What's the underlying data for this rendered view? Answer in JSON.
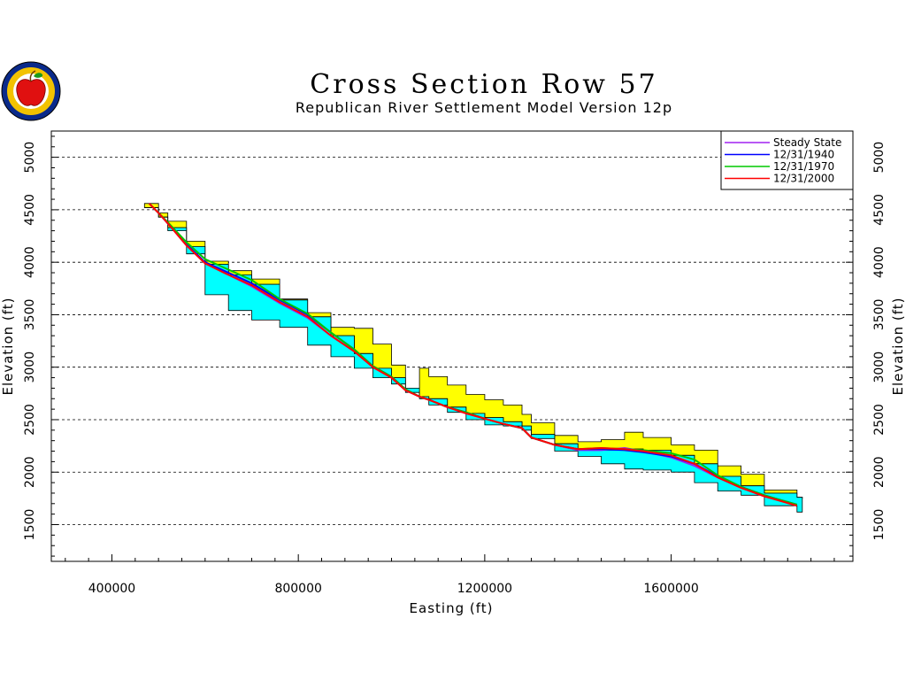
{
  "chart_data": {
    "type": "area",
    "title": "Cross Section Row 57",
    "subtitle": "Republican River Settlement Model Version 12p",
    "xlabel": "Easting (ft)",
    "ylabel": "Elevation (ft)",
    "xlim": [
      270000,
      1990000
    ],
    "ylim": [
      1150000,
      5250000
    ],
    "ylim_note": "",
    "ylim_ft": [
      1150,
      5250
    ],
    "x_ticks": [
      "400000",
      "800000",
      "1200000",
      "1600000"
    ],
    "x_tick_values": [
      400000,
      800000,
      1200000,
      1600000
    ],
    "y_ticks": [
      "1500",
      "2000",
      "2500",
      "3000",
      "3500",
      "4000",
      "4500",
      "5000"
    ],
    "y_tick_values": [
      1500,
      2000,
      2500,
      3000,
      3500,
      4000,
      4500,
      5000
    ],
    "grid": "dashed horizontal",
    "legend_position": "top-right",
    "legend": [
      {
        "name": "Steady State",
        "color": "#a020f0"
      },
      {
        "name": "12/31/1940",
        "color": "#0000ff"
      },
      {
        "name": "12/31/1970",
        "color": "#00c800"
      },
      {
        "name": "12/31/2000",
        "color": "#ff0000"
      }
    ],
    "layers": {
      "top_surface": {
        "color": "#ffff00",
        "x": [
          470000,
          500000,
          520000,
          560000,
          600000,
          650000,
          700000,
          760000,
          820000,
          870000,
          920000,
          960000,
          1000000,
          1030000,
          1060000,
          1080000,
          1120000,
          1160000,
          1200000,
          1240000,
          1280000,
          1300000,
          1350000,
          1400000,
          1450000,
          1500000,
          1540000,
          1600000,
          1650000,
          1700000,
          1750000,
          1800000,
          1870000
        ],
        "y": [
          4560,
          4470,
          4390,
          4200,
          4010,
          3920,
          3840,
          3650,
          3520,
          3380,
          3370,
          3220,
          3020,
          2800,
          2990,
          2910,
          2830,
          2740,
          2690,
          2640,
          2550,
          2470,
          2350,
          2290,
          2310,
          2380,
          2330,
          2260,
          2210,
          2060,
          1980,
          1830,
          1750
        ]
      },
      "aquifer_top": {
        "color": "#00ffff",
        "x": [
          470000,
          500000,
          520000,
          560000,
          600000,
          650000,
          700000,
          760000,
          820000,
          870000,
          920000,
          960000,
          1000000,
          1030000,
          1060000,
          1080000,
          1120000,
          1160000,
          1200000,
          1240000,
          1280000,
          1300000,
          1350000,
          1400000,
          1450000,
          1500000,
          1540000,
          1600000,
          1650000,
          1700000,
          1750000,
          1800000,
          1870000
        ],
        "y": [
          4520,
          4430,
          4330,
          4150,
          3980,
          3880,
          3790,
          3640,
          3480,
          3300,
          3130,
          2990,
          2900,
          2800,
          2720,
          2700,
          2620,
          2560,
          2520,
          2480,
          2440,
          2360,
          2270,
          2220,
          2210,
          2220,
          2210,
          2160,
          2080,
          1960,
          1870,
          1800,
          1760
        ]
      },
      "aquifer_base": {
        "color": "#000000",
        "x": [
          470000,
          500000,
          520000,
          560000,
          600000,
          650000,
          700000,
          760000,
          820000,
          870000,
          920000,
          960000,
          1000000,
          1030000,
          1060000,
          1080000,
          1120000,
          1160000,
          1200000,
          1240000,
          1280000,
          1300000,
          1350000,
          1400000,
          1450000,
          1500000,
          1540000,
          1600000,
          1650000,
          1700000,
          1750000,
          1800000,
          1870000
        ],
        "y": [
          4520,
          4430,
          4300,
          4080,
          3690,
          3540,
          3450,
          3380,
          3210,
          3100,
          2990,
          2900,
          2840,
          2760,
          2700,
          2640,
          2570,
          2500,
          2450,
          2440,
          2400,
          2320,
          2200,
          2150,
          2080,
          2030,
          2020,
          2000,
          1900,
          1820,
          1780,
          1680,
          1620
        ]
      }
    },
    "series": [
      {
        "name": "Steady State",
        "color": "#a020f0",
        "x": [
          480000,
          500000,
          520000,
          560000,
          600000,
          650000,
          700000,
          760000,
          820000,
          870000,
          920000,
          960000,
          1000000,
          1030000,
          1060000,
          1080000,
          1120000,
          1160000,
          1200000,
          1240000,
          1280000,
          1300000,
          1350000,
          1400000,
          1450000,
          1500000,
          1540000,
          1600000,
          1650000,
          1700000,
          1750000,
          1800000,
          1870000
        ],
        "y": [
          4560,
          4470,
          4370,
          4160,
          3990,
          3880,
          3770,
          3610,
          3470,
          3300,
          3150,
          3000,
          2900,
          2780,
          2720,
          2690,
          2620,
          2560,
          2510,
          2460,
          2420,
          2330,
          2260,
          2210,
          2210,
          2230,
          2200,
          2140,
          2060,
          1950,
          1850,
          1770,
          1690
        ]
      },
      {
        "name": "12/31/1940",
        "color": "#0000ff",
        "x": [
          480000,
          500000,
          520000,
          560000,
          600000,
          650000,
          700000,
          760000,
          820000,
          870000,
          920000,
          960000,
          1000000,
          1030000,
          1060000,
          1080000,
          1120000,
          1160000,
          1200000,
          1240000,
          1280000,
          1300000,
          1350000,
          1400000,
          1450000,
          1500000,
          1540000,
          1600000,
          1650000,
          1700000,
          1750000,
          1800000,
          1870000
        ],
        "y": [
          4560,
          4470,
          4370,
          4170,
          4000,
          3900,
          3800,
          3640,
          3500,
          3330,
          3170,
          3010,
          2910,
          2790,
          2720,
          2690,
          2620,
          2570,
          2510,
          2460,
          2420,
          2330,
          2260,
          2220,
          2220,
          2210,
          2190,
          2150,
          2080,
          1960,
          1860,
          1780,
          1690
        ]
      },
      {
        "name": "12/31/1970",
        "color": "#00c800",
        "x": [
          480000,
          500000,
          520000,
          560000,
          600000,
          650000,
          700000,
          760000,
          820000,
          870000,
          920000,
          960000,
          1000000,
          1030000,
          1060000,
          1080000,
          1120000,
          1160000,
          1200000,
          1240000,
          1280000,
          1300000,
          1350000,
          1400000,
          1450000,
          1500000,
          1540000,
          1600000,
          1650000,
          1700000,
          1750000,
          1800000,
          1870000
        ],
        "y": [
          4560,
          4470,
          4380,
          4190,
          4030,
          3930,
          3830,
          3650,
          3510,
          3330,
          3170,
          3010,
          2910,
          2790,
          2720,
          2690,
          2620,
          2570,
          2510,
          2460,
          2420,
          2330,
          2260,
          2220,
          2230,
          2220,
          2210,
          2180,
          2120,
          1970,
          1860,
          1780,
          1690
        ]
      },
      {
        "name": "12/31/2000",
        "color": "#ff0000",
        "x": [
          480000,
          500000,
          520000,
          560000,
          600000,
          650000,
          700000,
          760000,
          820000,
          870000,
          920000,
          960000,
          1000000,
          1030000,
          1060000,
          1080000,
          1120000,
          1160000,
          1200000,
          1240000,
          1280000,
          1300000,
          1350000,
          1400000,
          1450000,
          1500000,
          1540000,
          1600000,
          1650000,
          1700000,
          1750000,
          1800000,
          1870000
        ],
        "y": [
          4560,
          4470,
          4370,
          4160,
          3990,
          3880,
          3780,
          3620,
          3480,
          3300,
          3150,
          3000,
          2900,
          2780,
          2720,
          2690,
          2620,
          2560,
          2510,
          2460,
          2420,
          2330,
          2260,
          2220,
          2230,
          2220,
          2200,
          2160,
          2080,
          1950,
          1850,
          1770,
          1680
        ]
      }
    ]
  }
}
